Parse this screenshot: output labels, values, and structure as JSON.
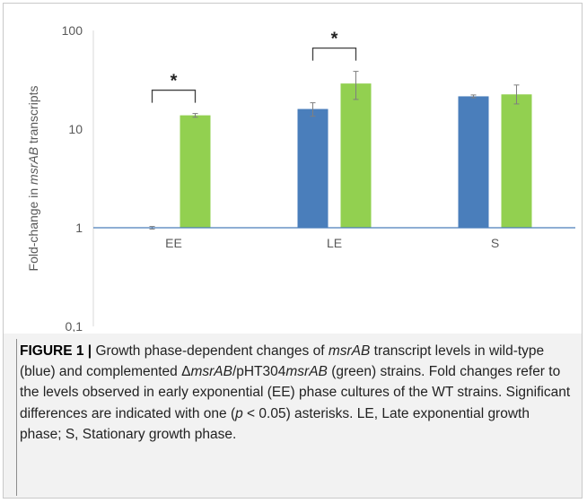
{
  "chart_data": {
    "type": "bar",
    "yscale": "log",
    "ylabel_parts": [
      {
        "text": "Fold-change in ",
        "italic": false
      },
      {
        "text": "msrAB",
        "italic": true
      },
      {
        "text": " transcripts",
        "italic": false
      }
    ],
    "ylim": [
      0.1,
      100
    ],
    "yticks": [
      {
        "value": 0.1,
        "label": "0,1"
      },
      {
        "value": 1,
        "label": "1"
      },
      {
        "value": 10,
        "label": "10"
      },
      {
        "value": 100,
        "label": "100"
      }
    ],
    "categories": [
      "EE",
      "LE",
      "S"
    ],
    "series": [
      {
        "name": "wild-type",
        "color": "#4a7ebb",
        "values": [
          1.0,
          16,
          21.5
        ],
        "err_low": [
          0.97,
          13.5,
          20.8
        ],
        "err_high": [
          1.03,
          18.5,
          22.2
        ]
      },
      {
        "name": "complemented",
        "color": "#92d050",
        "values": [
          13.8,
          29,
          22.5
        ],
        "err_low": [
          13.2,
          20,
          18
        ],
        "err_high": [
          14.4,
          38.5,
          28
        ]
      }
    ],
    "significance": [
      {
        "category": "EE",
        "label": "*"
      },
      {
        "category": "LE",
        "label": "*"
      }
    ],
    "grid": false,
    "baseline": 1,
    "legend": "none"
  },
  "caption": {
    "lead": "FIGURE 1 |",
    "parts": [
      {
        "text": " Growth phase-dependent changes of ",
        "italic": false
      },
      {
        "text": "msrAB",
        "italic": true
      },
      {
        "text": " transcript levels in wild-type (blue) and complemented Δ",
        "italic": false
      },
      {
        "text": "msrAB",
        "italic": true
      },
      {
        "text": "/pHT304",
        "italic": false
      },
      {
        "text": "msrAB",
        "italic": true
      },
      {
        "text": " (green) strains. Fold changes refer to the levels observed in early exponential (EE) phase cultures of the WT strains. Significant differences are indicated with one (",
        "italic": false
      },
      {
        "text": "p",
        "italic": true
      },
      {
        "text": " < 0.05) asterisks. LE, Late exponential growth phase; S, Stationary growth phase.",
        "italic": false
      }
    ]
  },
  "colors": {
    "axis": "#d9d9d9",
    "baseline": "#4a7ebb",
    "error_bar": "#7f7f7f",
    "text": "#595959"
  }
}
